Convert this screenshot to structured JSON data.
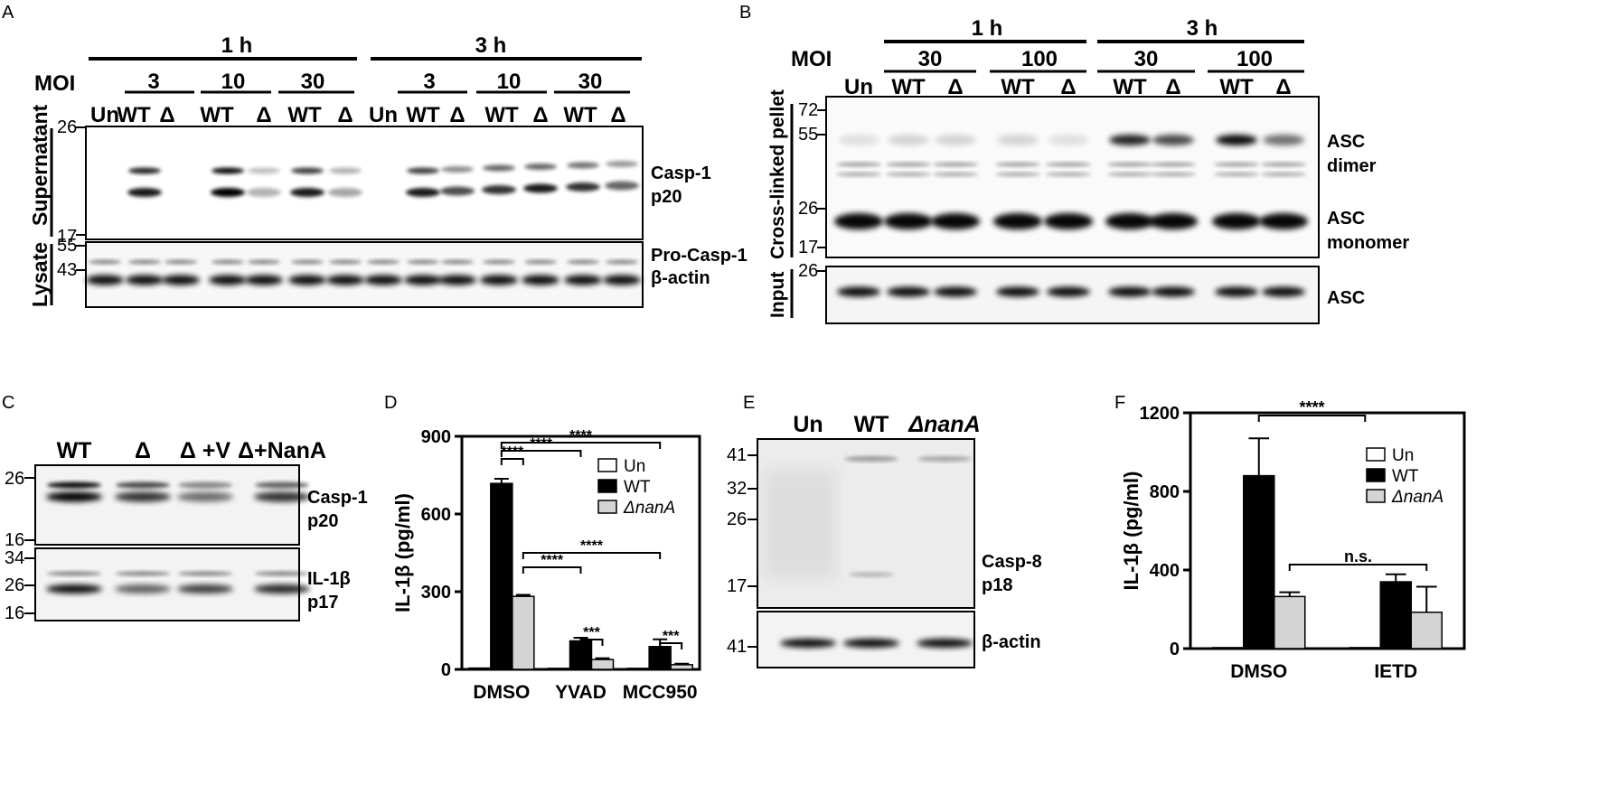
{
  "panelA": {
    "panel_letter": "A",
    "times": [
      "1 h",
      "3 h"
    ],
    "moi_label": "MOI",
    "mois": [
      "3",
      "10",
      "30",
      "3",
      "10",
      "30"
    ],
    "lanes": [
      "Un",
      "WT",
      "Δ",
      "WT",
      "Δ",
      "WT",
      "Δ",
      "Un",
      "WT",
      "Δ",
      "WT",
      "Δ",
      "WT",
      "Δ"
    ],
    "row_labels": [
      "Supernatant",
      "Lysate"
    ],
    "markers_top": [
      "26",
      "17"
    ],
    "markers_bottom": [
      "55",
      "43"
    ],
    "band_labels": [
      "Casp-1",
      "p20",
      "Pro-Casp-1",
      "β-actin"
    ]
  },
  "panelB": {
    "panel_letter": "B",
    "times": [
      "1 h",
      "3 h"
    ],
    "moi_label": "MOI",
    "mois": [
      "30",
      "100",
      "30",
      "100"
    ],
    "lanes": [
      "Un",
      "WT",
      "Δ",
      "WT",
      "Δ",
      "WT",
      "Δ",
      "WT",
      "Δ"
    ],
    "row_labels": [
      "Cross-linked pellet",
      "Input"
    ],
    "markers_top": [
      "72",
      "55",
      "26",
      "17"
    ],
    "markers_bottom": [
      "26"
    ],
    "band_labels": [
      "ASC",
      "dimer",
      "ASC",
      "monomer",
      "ASC"
    ]
  },
  "panelC": {
    "panel_letter": "C",
    "lanes": [
      "WT",
      "Δ",
      "Δ +V",
      "Δ+NanA"
    ],
    "markers_top": [
      "26",
      "16"
    ],
    "markers_bottom": [
      "34",
      "26",
      "16"
    ],
    "band_labels": [
      "Casp-1",
      "p20",
      "IL-1β",
      "p17"
    ]
  },
  "panelD": {
    "panel_letter": "D",
    "significance": [
      "****",
      "****",
      "****",
      "****",
      "****",
      "***",
      "***"
    ]
  },
  "panelE": {
    "panel_letter": "E",
    "lanes": [
      "Un",
      "WT",
      "ΔnanA"
    ],
    "markers_top": [
      "41",
      "32",
      "26",
      "17"
    ],
    "markers_bottom": [
      "41"
    ],
    "band_labels": [
      "Casp-8",
      "p18",
      "β-actin"
    ]
  },
  "panelF": {
    "panel_letter": "F",
    "significance": [
      "****",
      "n.s."
    ]
  },
  "chart_data": [
    {
      "type": "bar",
      "panel": "D",
      "ylabel": "IL-1β (pg/ml)",
      "ylim": [
        0,
        900
      ],
      "yticks": [
        "0",
        "300",
        "600",
        "900"
      ],
      "categories": [
        "DMSO",
        "YVAD",
        "MCC950"
      ],
      "series": [
        {
          "name": "Un",
          "color": "#ffffff",
          "values": [
            5,
            4,
            4
          ],
          "errors": [
            0,
            0,
            0
          ]
        },
        {
          "name": "WT",
          "color": "#000000",
          "values": [
            718,
            110,
            88
          ],
          "errors": [
            18,
            12,
            28
          ]
        },
        {
          "name": "ΔnanA",
          "color": "#d4d4d4",
          "values": [
            282,
            38,
            18
          ],
          "errors": [
            6,
            5,
            4
          ]
        }
      ],
      "legend": "top-right",
      "grid": false
    },
    {
      "type": "bar",
      "panel": "F",
      "ylabel": "IL-1β (pg/ml)",
      "ylim": [
        0,
        1200
      ],
      "yticks": [
        "0",
        "400",
        "800",
        "1200"
      ],
      "categories": [
        "DMSO",
        "IETD"
      ],
      "series": [
        {
          "name": "Un",
          "color": "#ffffff",
          "values": [
            5,
            5
          ],
          "errors": [
            0,
            0
          ]
        },
        {
          "name": "WT",
          "color": "#000000",
          "values": [
            880,
            340
          ],
          "errors": [
            190,
            38
          ]
        },
        {
          "name": "ΔnanA",
          "color": "#d4d4d4",
          "values": [
            265,
            185
          ],
          "errors": [
            22,
            130
          ]
        }
      ],
      "legend": "top-right",
      "grid": false
    }
  ]
}
